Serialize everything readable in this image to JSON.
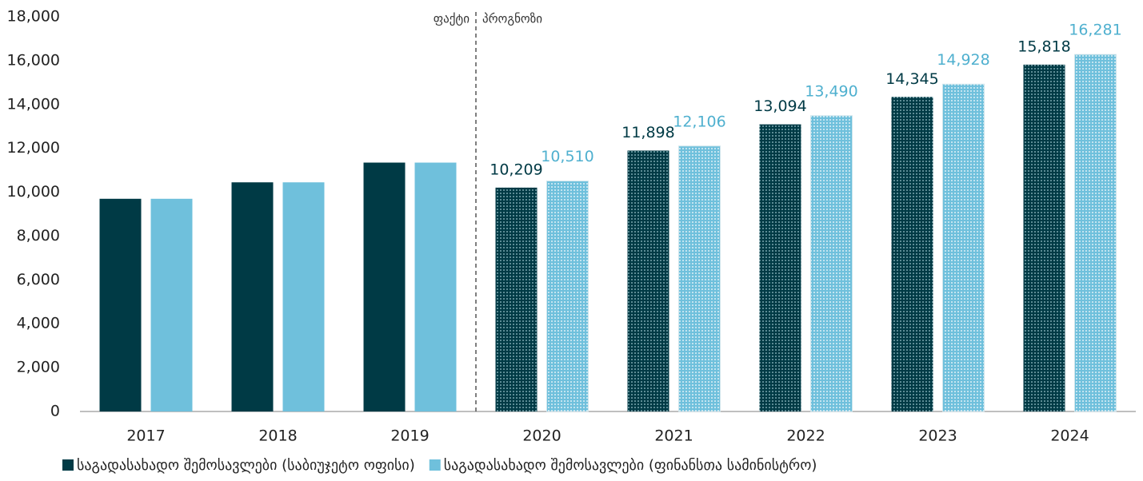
{
  "chart_data": {
    "type": "bar",
    "categories": [
      "2017",
      "2018",
      "2019",
      "2020",
      "2021",
      "2022",
      "2023",
      "2024"
    ],
    "series": [
      {
        "name": "საგადასახადო შემოსავლები (საბიუჯეტო ოფისი)",
        "color": "#003a45",
        "values": [
          9700,
          10450,
          11350,
          10209,
          11898,
          13094,
          14345,
          15818
        ],
        "value_labels": [
          null,
          null,
          null,
          "10,209",
          "11,898",
          "13,094",
          "14,345",
          "15,818"
        ]
      },
      {
        "name": "საგადასახადო შემოსავლები (ფინანსთა სამინისტრო)",
        "color": "#6fc0dc",
        "values": [
          9700,
          10450,
          11350,
          10510,
          12106,
          13490,
          14928,
          16281
        ],
        "value_labels": [
          null,
          null,
          null,
          "10,510",
          "12,106",
          "13,490",
          "14,928",
          "16,281"
        ]
      }
    ],
    "annotations": [
      "ფაქტი",
      "პროგნოზი"
    ],
    "ylim": [
      0,
      18000
    ],
    "yticks": [
      0,
      {
        "value": 2000,
        "label": "2,000"
      },
      {
        "value": 4000,
        "label": "4,000"
      },
      {
        "value": 6000,
        "label": "6,000"
      },
      {
        "value": 8000,
        "label": "8,000"
      },
      {
        "value": 10000,
        "label": "10,000"
      },
      {
        "value": 12000,
        "label": "12,000"
      },
      {
        "value": 14000,
        "label": "14,000"
      },
      {
        "value": 16000,
        "label": "16,000"
      },
      {
        "value": 18000,
        "label": "18,000"
      }
    ],
    "grid": false,
    "legend": "bottom"
  }
}
